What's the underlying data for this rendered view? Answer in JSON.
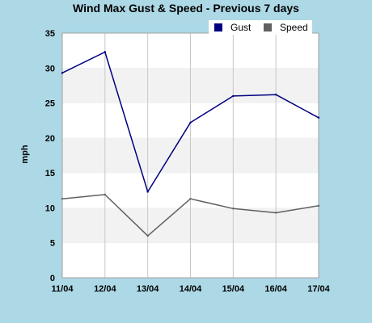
{
  "chart_data": {
    "type": "line",
    "title": "Wind Max Gust & Speed - Previous 7 days",
    "xlabel": "",
    "ylabel": "mph",
    "categories": [
      "11/04",
      "12/04",
      "13/04",
      "14/04",
      "15/04",
      "16/04",
      "17/04"
    ],
    "ylim": [
      0,
      35
    ],
    "yticks": [
      0,
      5,
      10,
      15,
      20,
      25,
      30,
      35
    ],
    "grid": true,
    "legend_position": "top-right",
    "series": [
      {
        "name": "Gust",
        "color": "#000080",
        "values": [
          29.3,
          32.3,
          12.3,
          22.2,
          26.0,
          26.2,
          22.9
        ]
      },
      {
        "name": "Speed",
        "color": "#606060",
        "values": [
          11.3,
          11.9,
          6.0,
          11.3,
          9.9,
          9.3,
          10.3
        ]
      }
    ]
  }
}
